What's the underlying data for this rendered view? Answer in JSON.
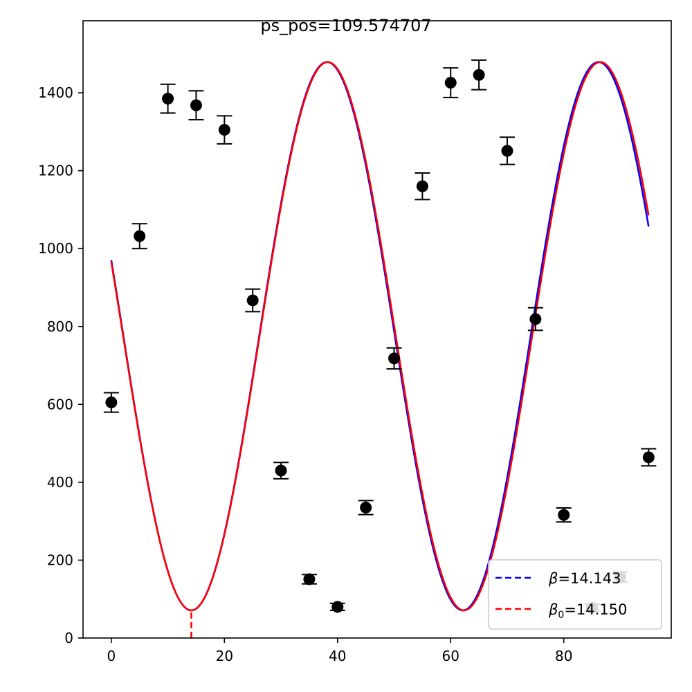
{
  "chart_data": {
    "type": "scatter",
    "title": "ps_pos=109.574707",
    "xlabel": "",
    "ylabel": "",
    "xlim": [
      -5,
      99
    ],
    "ylim": [
      0,
      1585
    ],
    "xticks": [
      0,
      20,
      40,
      60,
      80
    ],
    "yticks": [
      0,
      200,
      400,
      600,
      800,
      1000,
      1200,
      1400
    ],
    "grid": false,
    "legend_position": "lower-right",
    "measurements": {
      "x": [
        0,
        5,
        10,
        15,
        20,
        25,
        30,
        35,
        40,
        45,
        50,
        55,
        60,
        65,
        70,
        75,
        80,
        85,
        90,
        95
      ],
      "y": [
        605,
        1032,
        1385,
        1368,
        1305,
        867,
        430,
        151,
        80,
        335,
        718,
        1160,
        1426,
        1446,
        1251,
        819,
        316,
        78,
        157,
        464
      ],
      "yerr": [
        25,
        32,
        37,
        37,
        36,
        29,
        21,
        12,
        9,
        18,
        27,
        34,
        38,
        38,
        35,
        29,
        18,
        9,
        13,
        22
      ],
      "color": "#000000"
    },
    "series": [
      {
        "name": "β=14.143",
        "label_symbol": "β",
        "label_value": "=14.143",
        "beta": 14.143,
        "period": 48.0,
        "offset": 775,
        "amplitude": 704,
        "color": "#0000ff",
        "style": "solid"
      },
      {
        "name": "β₀=14.150",
        "label_symbol": "β",
        "label_sub": "0",
        "label_value": "=14.150",
        "beta": 14.15,
        "period": 48.2,
        "offset": 775,
        "amplitude": 704,
        "color": "#ff0000",
        "style": "solid"
      }
    ],
    "vline": {
      "x": 14.15,
      "color": "#ff0000",
      "style": "dashed"
    }
  }
}
